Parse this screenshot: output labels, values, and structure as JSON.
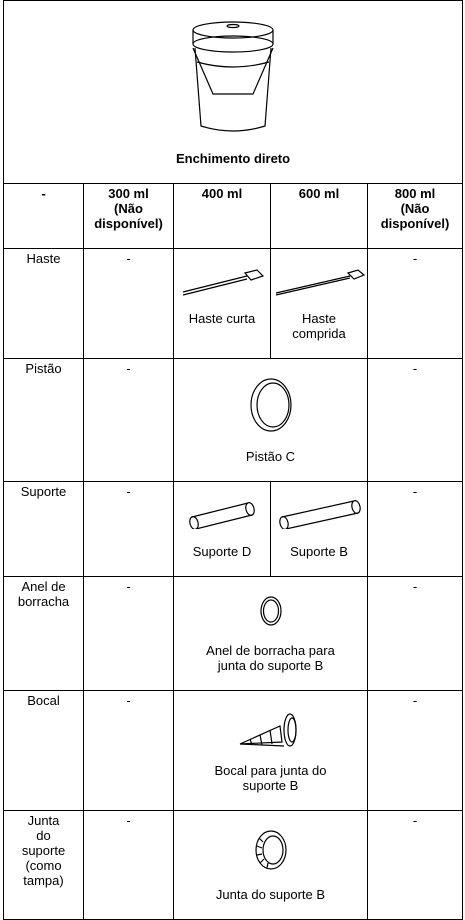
{
  "header": {
    "title": "Enchimento direto"
  },
  "table": {
    "columns": [
      "-",
      "300 ml\n(Não\ndisponível)",
      "400 ml",
      "600 ml",
      "800 ml\n(Não\ndisponível)"
    ],
    "rows": [
      [
        "Haste",
        "-",
        "Haste curta",
        "Haste\ncomprida",
        "-"
      ],
      [
        "Pistão",
        "-",
        "Pistão C",
        "-"
      ],
      [
        "Suporte",
        "-",
        "Suporte D",
        "Suporte B",
        "-"
      ],
      [
        "Anel de\nborracha",
        "-",
        "Anel de borracha para\njunta do suporte B",
        "-"
      ],
      [
        "Bocal",
        "-",
        "Bocal para junta do\nsuporte B",
        "-"
      ],
      [
        "Junta\ndo\nsuporte\n(como\ntampa)",
        "-",
        "Junta do suporte B",
        "-"
      ]
    ]
  }
}
